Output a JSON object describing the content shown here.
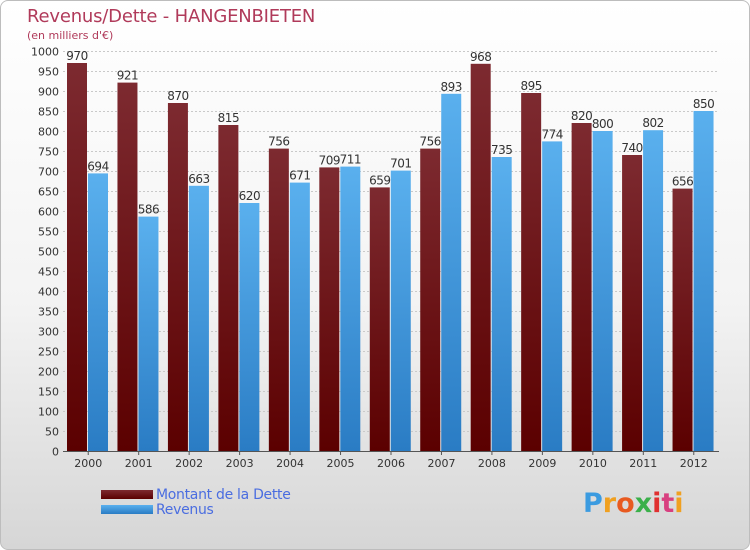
{
  "title": "Revenus/Dette - HANGENBIETEN",
  "subtitle": "(en milliers d'€)",
  "colors": {
    "dette_top": "#7d2a30",
    "dette_bottom": "#5b0000",
    "revenus_top": "#5ab0ee",
    "revenus_bottom": "#2a7cc4",
    "title": "#b03a5a",
    "legend_text": "#4a6de0"
  },
  "chart_data": {
    "type": "bar",
    "title": "Revenus/Dette - HANGENBIETEN",
    "ylabel": "(en milliers d'€)",
    "xlabel": "",
    "ylim": [
      0,
      1000
    ],
    "ytick_step": 50,
    "grid": true,
    "legend_position": "bottom-left",
    "categories": [
      "2000",
      "2001",
      "2002",
      "2003",
      "2004",
      "2005",
      "2006",
      "2007",
      "2008",
      "2009",
      "2010",
      "2011",
      "2012"
    ],
    "series": [
      {
        "name": "Montant de la Dette",
        "values": [
          970,
          921,
          870,
          815,
          756,
          709,
          659,
          756,
          968,
          895,
          820,
          740,
          656
        ]
      },
      {
        "name": "Revenus",
        "values": [
          694,
          586,
          663,
          620,
          671,
          711,
          701,
          893,
          735,
          774,
          800,
          802,
          850
        ]
      }
    ]
  },
  "legend": {
    "items": [
      {
        "label": "Montant de la Dette"
      },
      {
        "label": "Revenus"
      }
    ]
  },
  "logo": {
    "letters": [
      "P",
      "r",
      "o",
      "x",
      "i",
      "t",
      "i"
    ],
    "colors": [
      "#3b9be0",
      "#f0a020",
      "#e85a20",
      "#3ab04a",
      "#e03030",
      "#d84080",
      "#f0a020"
    ]
  }
}
